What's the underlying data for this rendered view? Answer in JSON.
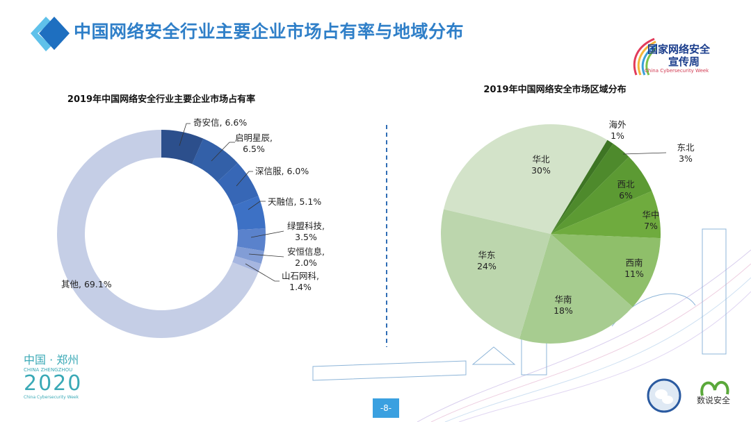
{
  "header": {
    "title": "中国网络安全行业主要企业市场占有率与地域分布",
    "logo_text": "国家网络安全宣传周",
    "logo_line1": "国家网络安全",
    "logo_line2": "宣传周",
    "logo_sub": "China Cybersecurity Week"
  },
  "footer": {
    "event_cn": "中国 · 郑州",
    "event_en": "CHINA ZHENGZHOU",
    "year": "2020",
    "event_sub": "China Cybersecurity Week",
    "page_number": "-8-",
    "brand_text": "数说安全"
  },
  "colors": {
    "title": "#2f7fc8",
    "page_badge": "#3aa0e0"
  },
  "chart_data": [
    {
      "type": "pie",
      "variant": "donut",
      "title": "2019年中国网络安全行业主要企业市场占有率",
      "unit": "%",
      "slices": [
        {
          "label": "奇安信",
          "value": 6.6,
          "display": "奇安信, 6.6%",
          "color": "#2c4f8c"
        },
        {
          "label": "启明星辰",
          "value": 6.5,
          "display_1": "启明星辰,",
          "display_2": "6.5%",
          "color": "#3360a8"
        },
        {
          "label": "深信服",
          "value": 6.0,
          "display": "深信服, 6.0%",
          "color": "#3767b6"
        },
        {
          "label": "天融信",
          "value": 5.1,
          "display": "天融信, 5.1%",
          "color": "#3d71c5"
        },
        {
          "label": "绿盟科技",
          "value": 3.5,
          "display_1": "绿盟科技,",
          "display_2": "3.5%",
          "color": "#5a82cc"
        },
        {
          "label": "安恒信息",
          "value": 2.0,
          "display_1": "安恒信息,",
          "display_2": "2.0%",
          "color": "#829dd6"
        },
        {
          "label": "山石网科",
          "value": 1.4,
          "display_1": "山石网科,",
          "display_2": "1.4%",
          "color": "#a6b6e0"
        },
        {
          "label": "其他",
          "value": 69.1,
          "display": "其他, 69.1%",
          "color": "#c5cee6"
        }
      ]
    },
    {
      "type": "pie",
      "title": "2019年中国网络安全市场区域分布",
      "unit": "%",
      "slices": [
        {
          "label": "海外",
          "value": 1,
          "display_2": "1%",
          "color": "#3e7524"
        },
        {
          "label": "东北",
          "value": 3,
          "display_2": "3%",
          "color": "#4e8a2c"
        },
        {
          "label": "西北",
          "value": 6,
          "display_2": "6%",
          "color": "#5c9a33"
        },
        {
          "label": "华中",
          "value": 7,
          "display_2": "7%",
          "color": "#6fab3e"
        },
        {
          "label": "西南",
          "value": 11,
          "display_2": "11%",
          "color": "#8fbf6a"
        },
        {
          "label": "华南",
          "value": 18,
          "display_2": "18%",
          "color": "#a7cc90"
        },
        {
          "label": "华东",
          "value": 24,
          "display_2": "24%",
          "color": "#bcd6ad"
        },
        {
          "label": "华北",
          "value": 30,
          "display_2": "30%",
          "color": "#d3e3c9"
        }
      ]
    }
  ]
}
